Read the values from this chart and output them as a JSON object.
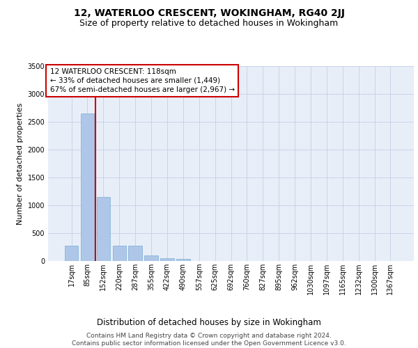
{
  "title": "12, WATERLOO CRESCENT, WOKINGHAM, RG40 2JJ",
  "subtitle": "Size of property relative to detached houses in Wokingham",
  "xlabel": "Distribution of detached houses by size in Wokingham",
  "ylabel": "Number of detached properties",
  "bar_labels": [
    "17sqm",
    "85sqm",
    "152sqm",
    "220sqm",
    "287sqm",
    "355sqm",
    "422sqm",
    "490sqm",
    "557sqm",
    "625sqm",
    "692sqm",
    "760sqm",
    "827sqm",
    "895sqm",
    "962sqm",
    "1030sqm",
    "1097sqm",
    "1165sqm",
    "1232sqm",
    "1300sqm",
    "1367sqm"
  ],
  "bar_values": [
    270,
    2650,
    1150,
    280,
    280,
    95,
    55,
    35,
    0,
    0,
    0,
    0,
    0,
    0,
    0,
    0,
    0,
    0,
    0,
    0,
    0
  ],
  "bar_color": "#aec6e8",
  "bar_edge_color": "#7aafd4",
  "grid_color": "#c8d4e8",
  "background_color": "#e8eef8",
  "annotation_line1": "12 WATERLOO CRESCENT: 118sqm",
  "annotation_line2": "← 33% of detached houses are smaller (1,449)",
  "annotation_line3": "67% of semi-detached houses are larger (2,967) →",
  "annotation_box_color": "#ffffff",
  "annotation_box_edge": "#cc0000",
  "vline_color": "#cc0000",
  "vline_x": 1.5,
  "ylim_max": 3500,
  "yticks": [
    0,
    500,
    1000,
    1500,
    2000,
    2500,
    3000,
    3500
  ],
  "footer_line1": "Contains HM Land Registry data © Crown copyright and database right 2024.",
  "footer_line2": "Contains public sector information licensed under the Open Government Licence v3.0.",
  "title_fontsize": 10,
  "subtitle_fontsize": 9,
  "xlabel_fontsize": 8.5,
  "ylabel_fontsize": 8,
  "tick_fontsize": 7,
  "annotation_fontsize": 7.5,
  "footer_fontsize": 6.5
}
